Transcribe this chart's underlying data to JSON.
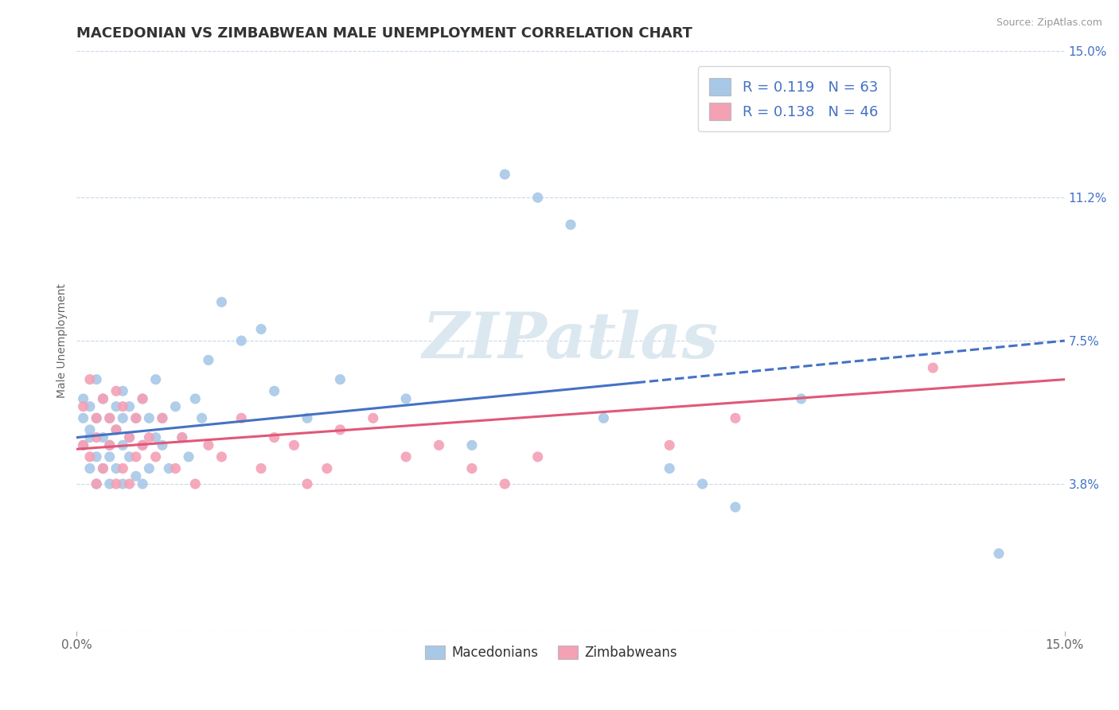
{
  "title": "MACEDONIAN VS ZIMBABWEAN MALE UNEMPLOYMENT CORRELATION CHART",
  "source": "Source: ZipAtlas.com",
  "ylabel": "Male Unemployment",
  "xlim": [
    0,
    0.15
  ],
  "ylim": [
    0,
    0.15
  ],
  "yticks": [
    0.0,
    0.038,
    0.075,
    0.112,
    0.15
  ],
  "ytick_labels": [
    "",
    "3.8%",
    "7.5%",
    "11.2%",
    "15.0%"
  ],
  "macedonian_R": 0.119,
  "macedonian_N": 63,
  "zimbabwean_R": 0.138,
  "zimbabwean_N": 46,
  "macedonian_color": "#a8c8e8",
  "zimbabwean_color": "#f4a0b5",
  "macedonian_line_color": "#4472c4",
  "zimbabwean_line_color": "#e05878",
  "background_color": "#ffffff",
  "grid_color": "#c8d8ea",
  "watermark_color": "#dce8f0",
  "title_fontsize": 13,
  "axis_label_fontsize": 10,
  "tick_fontsize": 11,
  "legend_fontsize": 13,
  "macedonian_x": [
    0.001,
    0.001,
    0.001,
    0.002,
    0.002,
    0.002,
    0.002,
    0.003,
    0.003,
    0.003,
    0.003,
    0.004,
    0.004,
    0.004,
    0.005,
    0.005,
    0.005,
    0.005,
    0.006,
    0.006,
    0.006,
    0.007,
    0.007,
    0.007,
    0.007,
    0.008,
    0.008,
    0.008,
    0.009,
    0.009,
    0.01,
    0.01,
    0.01,
    0.011,
    0.011,
    0.012,
    0.012,
    0.013,
    0.013,
    0.014,
    0.015,
    0.016,
    0.017,
    0.018,
    0.019,
    0.02,
    0.022,
    0.025,
    0.028,
    0.03,
    0.035,
    0.04,
    0.05,
    0.06,
    0.065,
    0.07,
    0.075,
    0.08,
    0.09,
    0.095,
    0.1,
    0.11,
    0.14
  ],
  "macedonian_y": [
    0.055,
    0.06,
    0.048,
    0.052,
    0.058,
    0.042,
    0.05,
    0.065,
    0.045,
    0.055,
    0.038,
    0.05,
    0.042,
    0.06,
    0.048,
    0.055,
    0.038,
    0.045,
    0.052,
    0.058,
    0.042,
    0.048,
    0.062,
    0.038,
    0.055,
    0.045,
    0.05,
    0.058,
    0.04,
    0.055,
    0.048,
    0.06,
    0.038,
    0.055,
    0.042,
    0.05,
    0.065,
    0.048,
    0.055,
    0.042,
    0.058,
    0.05,
    0.045,
    0.06,
    0.055,
    0.07,
    0.085,
    0.075,
    0.078,
    0.062,
    0.055,
    0.065,
    0.06,
    0.048,
    0.118,
    0.112,
    0.105,
    0.055,
    0.042,
    0.038,
    0.032,
    0.06,
    0.02
  ],
  "zimbabwean_x": [
    0.001,
    0.001,
    0.002,
    0.002,
    0.003,
    0.003,
    0.003,
    0.004,
    0.004,
    0.005,
    0.005,
    0.006,
    0.006,
    0.006,
    0.007,
    0.007,
    0.008,
    0.008,
    0.009,
    0.009,
    0.01,
    0.01,
    0.011,
    0.012,
    0.013,
    0.015,
    0.016,
    0.018,
    0.02,
    0.022,
    0.025,
    0.028,
    0.03,
    0.033,
    0.035,
    0.038,
    0.04,
    0.045,
    0.05,
    0.055,
    0.06,
    0.065,
    0.07,
    0.09,
    0.1,
    0.13
  ],
  "zimbabwean_y": [
    0.058,
    0.048,
    0.065,
    0.045,
    0.055,
    0.038,
    0.05,
    0.042,
    0.06,
    0.048,
    0.055,
    0.038,
    0.052,
    0.062,
    0.042,
    0.058,
    0.05,
    0.038,
    0.045,
    0.055,
    0.048,
    0.06,
    0.05,
    0.045,
    0.055,
    0.042,
    0.05,
    0.038,
    0.048,
    0.045,
    0.055,
    0.042,
    0.05,
    0.048,
    0.038,
    0.042,
    0.052,
    0.055,
    0.045,
    0.048,
    0.042,
    0.038,
    0.045,
    0.048,
    0.055,
    0.068
  ],
  "mac_trend_x0": 0.0,
  "mac_trend_y0": 0.05,
  "mac_trend_x1": 0.15,
  "mac_trend_y1": 0.075,
  "mac_trend_dashed_x0": 0.085,
  "mac_trend_dashed_x1": 0.15,
  "zim_trend_x0": 0.0,
  "zim_trend_y0": 0.047,
  "zim_trend_x1": 0.15,
  "zim_trend_y1": 0.065
}
